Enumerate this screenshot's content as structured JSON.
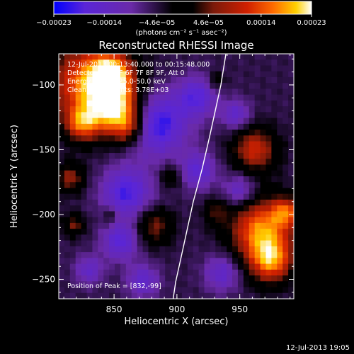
{
  "chart_data": {
    "type": "heatmap",
    "title": "Reconstructed RHESSI Image",
    "xlabel": "Heliocentric X (arcsec)",
    "ylabel": "Heliocentric Y (arcsec)",
    "xlim": [
      806,
      993
    ],
    "ylim": [
      -265,
      -76
    ],
    "xticks": [
      "850",
      "900",
      "950"
    ],
    "xtick_values": [
      850,
      900,
      950
    ],
    "yticks": [
      "−100",
      "−150",
      "−200",
      "−250"
    ],
    "ytick_values": [
      -100,
      -150,
      -200,
      -250
    ],
    "colorbar": {
      "tick_labels": [
        "−0.00023",
        "−0.00014",
        "−4.6e−05",
        "4.6e−05",
        "0.00014",
        "0.00023"
      ],
      "tick_values": [
        -0.00023,
        -0.00014,
        -4.6e-05,
        4.6e-05,
        0.00014,
        0.00023
      ],
      "range": [
        -0.00023,
        0.00023
      ],
      "unit_label": "(photons cm⁻² s⁻¹ asec⁻²)",
      "colors": [
        "#0000ff",
        "#5a25d8",
        "#6a2aa8",
        "#000000",
        "#7b1a0a",
        "#d02000",
        "#ff6a00",
        "#ffd000",
        "#ffffff"
      ]
    },
    "annotations": [
      "12-Jul-2013 00:13:40.000 to 00:15:48.000",
      "Detectors: 3F 5F 6F 7F 8F 9F, Att 0",
      "Energy Range: 25.0-50.0 keV",
      "Clean.  Total counts: 3.78E+03"
    ],
    "peak_label": "Position of Peak = [832,-99]",
    "peak": [
      832,
      -99
    ],
    "limb": [
      [
        939,
        -76
      ],
      [
        935,
        -100
      ],
      [
        926,
        -140
      ],
      [
        920,
        -165
      ],
      [
        913,
        -190
      ],
      [
        904,
        -230
      ],
      [
        899,
        -252
      ],
      [
        897,
        -265
      ]
    ],
    "grid": {
      "nx": 42,
      "ny": 42,
      "hotspots": [
        {
          "x": 832,
          "y": -99,
          "r": 22,
          "v": 0.00023
        },
        {
          "x": 851,
          "y": -118,
          "r": 14,
          "v": 0.00021
        },
        {
          "x": 848,
          "y": -92,
          "r": 10,
          "v": 0.00019
        },
        {
          "x": 862,
          "y": -133,
          "r": 9,
          "v": 0.00012
        },
        {
          "x": 824,
          "y": -130,
          "r": 9,
          "v": 0.00015
        },
        {
          "x": 962,
          "y": -150,
          "r": 12,
          "v": 0.00016
        },
        {
          "x": 967,
          "y": -212,
          "r": 17,
          "v": 0.00022
        },
        {
          "x": 975,
          "y": -236,
          "r": 12,
          "v": 0.00019
        },
        {
          "x": 987,
          "y": -198,
          "r": 8,
          "v": 0.00015
        },
        {
          "x": 882,
          "y": -209,
          "r": 10,
          "v": 0.00011
        },
        {
          "x": 895,
          "y": -171,
          "r": 6,
          "v": 8e-05
        },
        {
          "x": 815,
          "y": -172,
          "r": 8,
          "v": 0.00012
        },
        {
          "x": 818,
          "y": -208,
          "r": 6,
          "v": 0.0001
        },
        {
          "x": 931,
          "y": -198,
          "r": 7,
          "v": 8e-05
        },
        {
          "x": 847,
          "y": -201,
          "r": 5,
          "v": 6e-05
        },
        {
          "x": 931,
          "y": -97,
          "r": 5,
          "v": 6e-05
        }
      ],
      "coldspots": [
        {
          "x": 884,
          "y": -130,
          "r": 17,
          "v": -0.00016
        },
        {
          "x": 860,
          "y": -183,
          "r": 14,
          "v": -0.00014
        },
        {
          "x": 916,
          "y": -109,
          "r": 11,
          "v": -0.00012
        },
        {
          "x": 917,
          "y": -166,
          "r": 10,
          "v": -0.00011
        },
        {
          "x": 855,
          "y": -221,
          "r": 10,
          "v": -0.00012
        },
        {
          "x": 947,
          "y": -123,
          "r": 8,
          "v": -0.0001
        },
        {
          "x": 950,
          "y": -182,
          "r": 9,
          "v": -0.0001
        },
        {
          "x": 936,
          "y": -245,
          "r": 10,
          "v": -0.0001
        },
        {
          "x": 830,
          "y": -243,
          "r": 8,
          "v": -9e-05
        },
        {
          "x": 873,
          "y": -251,
          "r": 9,
          "v": -0.0001
        }
      ]
    }
  },
  "footer": {
    "timestamp": "12-Jul-2013 19:05"
  }
}
